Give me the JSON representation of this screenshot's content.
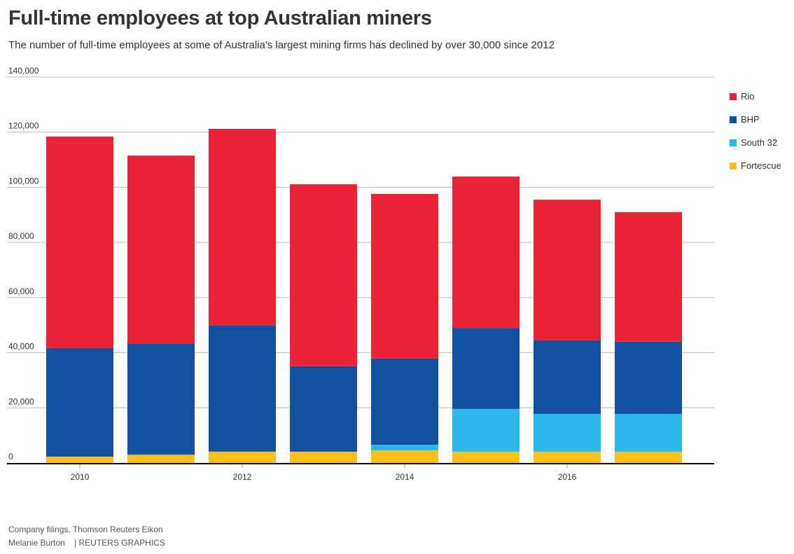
{
  "title": "Full-time employees at top Australian miners",
  "subtitle": "The number of full-time employees at some of Australia's largest mining firms has declined by over 30,000 since 2012",
  "source": "Company filings, Thomson Reuters Eikon",
  "credit": "Melanie Burton    | REUTERS GRAPHICS",
  "chart_data": {
    "type": "bar",
    "stacked": true,
    "categories": [
      "2010",
      "2011",
      "2012",
      "2013",
      "2014",
      "2015",
      "2016",
      "2017"
    ],
    "x_tick_labels": [
      "2010",
      "2012",
      "2014",
      "2016"
    ],
    "y_tick_labels": [
      "0",
      "20,000",
      "40,000",
      "60,000",
      "80,000",
      "100,000",
      "120,000",
      "140,000"
    ],
    "ylim": [
      0,
      140000
    ],
    "grid": true,
    "legend_position": "right",
    "series": [
      {
        "name": "Fortescue",
        "color": "#fbc01a",
        "values": [
          2300,
          3000,
          4100,
          4100,
          4600,
          4100,
          4100,
          4100
        ]
      },
      {
        "name": "South 32",
        "color": "#2bb7ea",
        "values": [
          0,
          0,
          0,
          0,
          2000,
          15500,
          13700,
          13700
        ]
      },
      {
        "name": "BHP",
        "color": "#11519f",
        "values": [
          39400,
          40400,
          45900,
          31000,
          31300,
          29400,
          26700,
          26200
        ]
      },
      {
        "name": "Rio",
        "color": "#e92235",
        "values": [
          76700,
          68100,
          71200,
          66000,
          59700,
          54900,
          51000,
          47000
        ]
      }
    ]
  }
}
